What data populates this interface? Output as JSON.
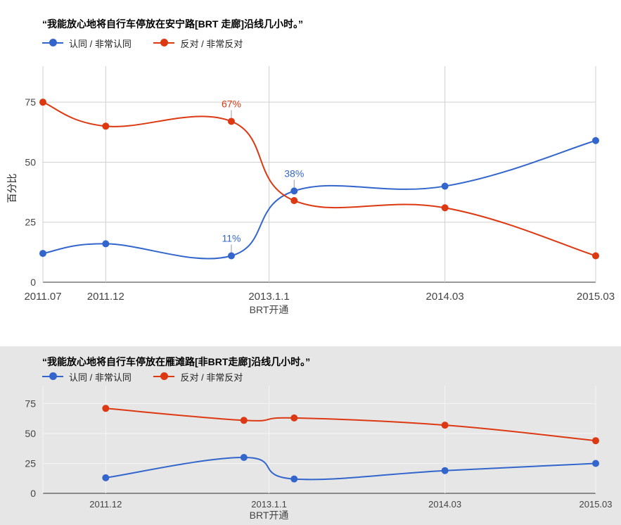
{
  "chart_data": [
    {
      "type": "line",
      "title": "“我能放心地将自行车停放在安宁路[BRT 走廊]沿线几小时。”",
      "xlabel": "BRT开通",
      "ylabel": "百分比",
      "ylim": [
        0,
        90
      ],
      "yticks": [
        0,
        25,
        50,
        75
      ],
      "grid": true,
      "legend_position": "top-left",
      "x_tick_labels": [
        "2011.07",
        "2011.12",
        "2013.1.1",
        "2014.03",
        "2015.03"
      ],
      "x_ticks": [
        0,
        5,
        18,
        32,
        44
      ],
      "x_range": [
        0,
        44
      ],
      "series": [
        {
          "name": "认同 / 非常认同",
          "color": "#3366cc",
          "points": [
            {
              "x": 0,
              "y": 12
            },
            {
              "x": 5,
              "y": 16
            },
            {
              "x": 15,
              "y": 11,
              "label": "11%"
            },
            {
              "x": 20,
              "y": 38,
              "label": "38%"
            },
            {
              "x": 32,
              "y": 40
            },
            {
              "x": 44,
              "y": 59
            }
          ]
        },
        {
          "name": "反对 / 非常反对",
          "color": "#dc3912",
          "points": [
            {
              "x": 0,
              "y": 75
            },
            {
              "x": 5,
              "y": 65
            },
            {
              "x": 15,
              "y": 67,
              "label": "67%"
            },
            {
              "x": 20,
              "y": 34
            },
            {
              "x": 32,
              "y": 31
            },
            {
              "x": 44,
              "y": 11
            }
          ]
        }
      ]
    },
    {
      "type": "line",
      "title": "“我能放心地将自行车停放在雁滩路[非BRT走廊]沿线几小时。”",
      "xlabel": "BRT开通",
      "ylabel": "",
      "ylim": [
        0,
        90
      ],
      "yticks": [
        0,
        25,
        50,
        75
      ],
      "grid": true,
      "legend_position": "top-left",
      "x_tick_labels": [
        "2011.12",
        "2013.1.1",
        "2014.03",
        "2015.03"
      ],
      "x_ticks": [
        5,
        18,
        32,
        44
      ],
      "x_range": [
        0,
        44
      ],
      "series": [
        {
          "name": "认同 / 非常认同",
          "color": "#3366cc",
          "points": [
            {
              "x": 5,
              "y": 13
            },
            {
              "x": 16,
              "y": 30
            },
            {
              "x": 20,
              "y": 12
            },
            {
              "x": 32,
              "y": 19
            },
            {
              "x": 44,
              "y": 25
            }
          ]
        },
        {
          "name": "反对 / 非常反对",
          "color": "#dc3912",
          "points": [
            {
              "x": 5,
              "y": 71
            },
            {
              "x": 16,
              "y": 61
            },
            {
              "x": 20,
              "y": 63
            },
            {
              "x": 32,
              "y": 57
            },
            {
              "x": 44,
              "y": 44
            }
          ]
        }
      ]
    }
  ]
}
